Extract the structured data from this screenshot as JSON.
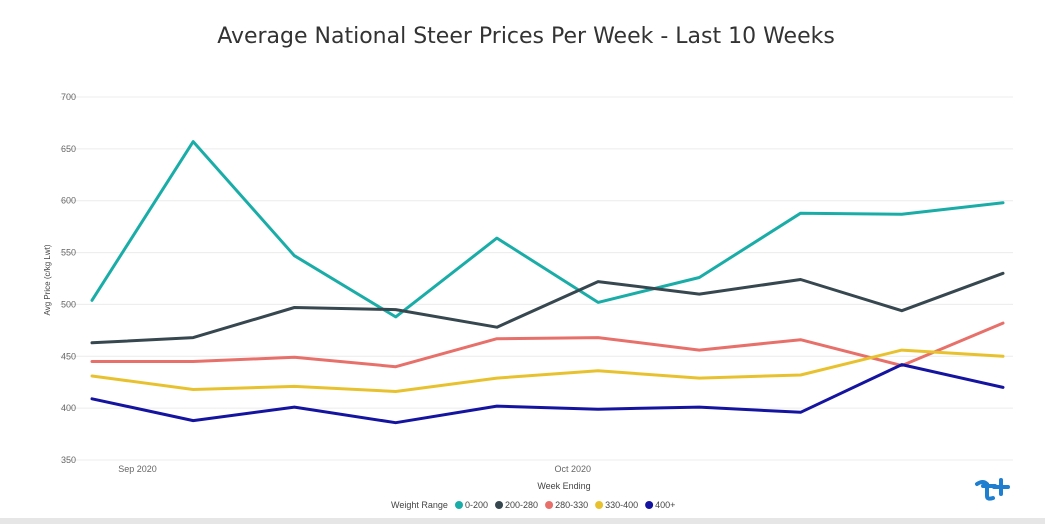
{
  "chart_data": {
    "type": "line",
    "title": "Average National Steer Prices Per Week - Last 10 Weeks",
    "xlabel": "Week Ending",
    "ylabel": "Avg Price (c/kg Lwt)",
    "ylim": [
      350,
      700
    ],
    "yticks": [
      350,
      400,
      450,
      500,
      550,
      600,
      650,
      700
    ],
    "x": [
      1,
      2,
      3,
      4,
      5,
      6,
      7,
      8,
      9,
      10
    ],
    "xtick_labels": [
      {
        "label": "Sep 2020",
        "at": 1.45
      },
      {
        "label": "Oct 2020",
        "at": 5.75
      }
    ],
    "grid": true,
    "legend_title": "Weight Range",
    "legend_position": "bottom",
    "series": [
      {
        "name": "0-200",
        "color": "#1AADA8",
        "values": [
          504,
          657,
          547,
          488,
          564,
          502,
          526,
          588,
          587,
          598
        ]
      },
      {
        "name": "200-280",
        "color": "#37474F",
        "values": [
          463,
          468,
          497,
          495,
          478,
          522,
          510,
          524,
          494,
          530
        ]
      },
      {
        "name": "280-330",
        "color": "#E8706A",
        "values": [
          445,
          445,
          449,
          440,
          467,
          468,
          456,
          466,
          441,
          482
        ]
      },
      {
        "name": "330-400",
        "color": "#E8C22E",
        "values": [
          431,
          418,
          421,
          416,
          429,
          436,
          429,
          432,
          456,
          450
        ]
      },
      {
        "name": "400+",
        "color": "#1414A0",
        "values": [
          409,
          388,
          401,
          386,
          402,
          399,
          401,
          396,
          442,
          420
        ]
      }
    ]
  },
  "logo": {
    "name": "brand-logo-icon",
    "color": "#1E7FD0"
  }
}
